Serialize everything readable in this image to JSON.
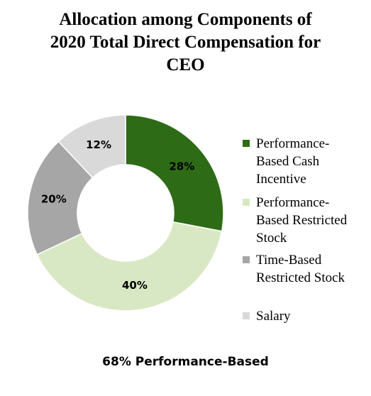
{
  "chart_data": {
    "type": "pie",
    "donut": true,
    "title_lines": [
      "Allocation among Components of",
      "2020 Total Direct Compensation for",
      "CEO"
    ],
    "categories": [
      "Performance-Based Cash Incentive",
      "Performance-Based Restricted Stock",
      "Time-Based Restricted Stock",
      "Salary"
    ],
    "values": [
      28,
      40,
      20,
      12
    ],
    "data_labels": [
      "28%",
      "40%",
      "20%",
      "12%"
    ],
    "colors": [
      "#2e6b16",
      "#d9e8c4",
      "#a6a6a6",
      "#d9d9d9"
    ],
    "legend": {
      "placement": "right",
      "items": [
        {
          "lines": [
            "Performance-",
            "Based Cash",
            "Incentive"
          ],
          "color": "#2e6b16"
        },
        {
          "lines": [
            "Performance-",
            "Based Restricted",
            "Stock"
          ],
          "color": "#d9e8c4"
        },
        {
          "lines": [
            "Time-Based",
            "Restricted Stock"
          ],
          "color": "#a6a6a6"
        },
        {
          "lines": [
            "Salary"
          ],
          "color": "#d9d9d9"
        }
      ]
    },
    "annotation": "68% Performance-Based"
  }
}
